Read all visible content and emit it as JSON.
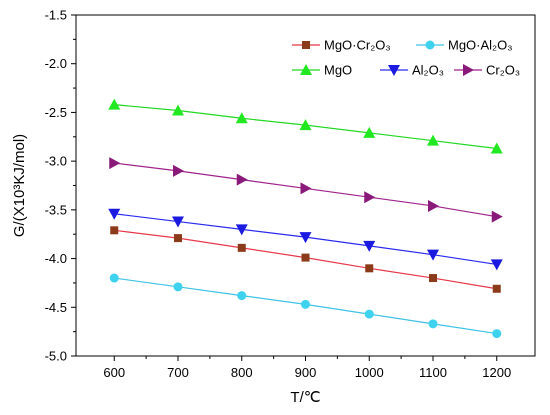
{
  "chart_data": {
    "type": "line",
    "xlabel": "T/℃",
    "ylabel": "G/(X10³KJ/mol)",
    "x": [
      600,
      700,
      800,
      900,
      1000,
      1100,
      1200
    ],
    "x_ticks": [
      "600",
      "700",
      "800",
      "900",
      "1000",
      "1100",
      "1200"
    ],
    "xlim": [
      540,
      1260
    ],
    "ylim": [
      -5.0,
      -1.5
    ],
    "y_ticks": [
      "-1.5",
      "-2.0",
      "-2.5",
      "-3.0",
      "-3.5",
      "-4.0",
      "-4.5",
      "-5.0"
    ],
    "y_tick_values": [
      -1.5,
      -2.0,
      -2.5,
      -3.0,
      -3.5,
      -4.0,
      -4.5,
      -5.0
    ],
    "grid": false,
    "legend_position": "top-right",
    "series": [
      {
        "name": "MgO·Cr₂O₃",
        "color": "#e8384a",
        "marker_color": "#8b3a1a",
        "marker": "square",
        "values": [
          -3.71,
          -3.79,
          -3.89,
          -3.99,
          -4.1,
          -4.2,
          -4.31
        ]
      },
      {
        "name": "MgO·Al₂O₃",
        "color": "#3fc2e6",
        "marker_color": "#3fd2ee",
        "marker": "circle",
        "values": [
          -4.2,
          -4.29,
          -4.38,
          -4.47,
          -4.57,
          -4.67,
          -4.77
        ]
      },
      {
        "name": "MgO",
        "color": "#22d822",
        "marker_color": "#22e822",
        "marker": "triangle-up",
        "values": [
          -2.42,
          -2.48,
          -2.56,
          -2.63,
          -2.71,
          -2.79,
          -2.87
        ]
      },
      {
        "name": "Al₂O₃",
        "color": "#2a2aee",
        "marker_color": "#1a1ae0",
        "marker": "triangle-down",
        "values": [
          -3.54,
          -3.62,
          -3.7,
          -3.78,
          -3.87,
          -3.96,
          -4.06
        ]
      },
      {
        "name": "Cr₂O₃",
        "color": "#a0238c",
        "marker_color": "#8a1a7a",
        "marker": "triangle-right",
        "values": [
          -3.02,
          -3.1,
          -3.19,
          -3.28,
          -3.37,
          -3.46,
          -3.57
        ]
      }
    ],
    "legend_rows": [
      [
        "MgO·Cr₂O₃",
        "MgO·Al₂O₃"
      ],
      [
        "MgO",
        "Al₂O₃",
        "Cr₂O₃"
      ]
    ]
  }
}
